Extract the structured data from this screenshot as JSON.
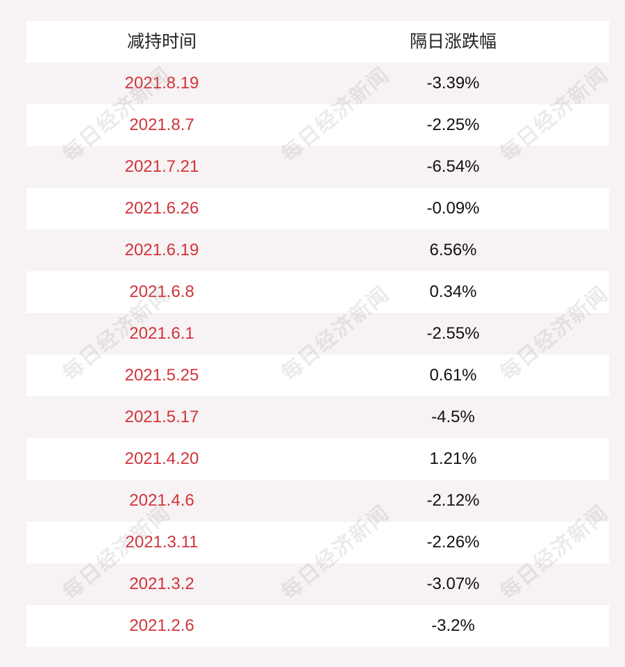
{
  "table": {
    "headers": {
      "date": "减持时间",
      "change": "隔日涨跌幅"
    },
    "rows": [
      {
        "date": "2021.8.19",
        "change": "-3.39%"
      },
      {
        "date": "2021.8.7",
        "change": "-2.25%"
      },
      {
        "date": "2021.7.21",
        "change": "-6.54%"
      },
      {
        "date": "2021.6.26",
        "change": "-0.09%"
      },
      {
        "date": "2021.6.19",
        "change": "6.56%"
      },
      {
        "date": "2021.6.8",
        "change": "0.34%"
      },
      {
        "date": "2021.6.1",
        "change": "-2.55%"
      },
      {
        "date": "2021.5.25",
        "change": "0.61%"
      },
      {
        "date": "2021.5.17",
        "change": "-4.5%"
      },
      {
        "date": "2021.4.20",
        "change": "1.21%"
      },
      {
        "date": "2021.4.6",
        "change": "-2.12%"
      },
      {
        "date": "2021.3.11",
        "change": "-2.26%"
      },
      {
        "date": "2021.3.2",
        "change": "-3.07%"
      },
      {
        "date": "2021.2.6",
        "change": "-3.2%"
      }
    ]
  },
  "watermark": {
    "text": "每日经济新闻"
  },
  "colors": {
    "date_text": "#d0343a",
    "change_text": "#111111",
    "header_text": "#222222",
    "row_white": "#ffffff",
    "row_tinted": "#f7f2f3"
  }
}
